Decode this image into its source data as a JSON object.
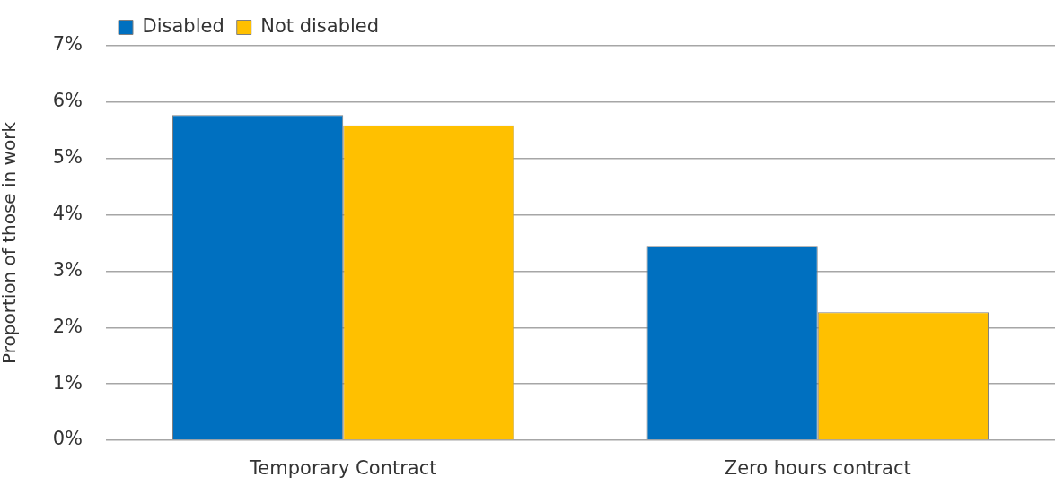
{
  "chart_data": {
    "type": "bar",
    "ylabel": "Proportion of those in work",
    "categories": [
      "Temporary Contract",
      "Zero hours contract"
    ],
    "series": [
      {
        "name": "Disabled",
        "color": "#0070c0",
        "values": [
          5.77,
          3.45
        ]
      },
      {
        "name": "Not disabled",
        "color": "#ffc000",
        "values": [
          5.59,
          2.27
        ]
      }
    ],
    "ylim": [
      0,
      7
    ],
    "yticks": [
      {
        "value": 0,
        "label": "0%"
      },
      {
        "value": 1,
        "label": "1%"
      },
      {
        "value": 2,
        "label": "2%"
      },
      {
        "value": 3,
        "label": "3%"
      },
      {
        "value": 4,
        "label": "4%"
      },
      {
        "value": 5,
        "label": "5%"
      },
      {
        "value": 6,
        "label": "6%"
      },
      {
        "value": 7,
        "label": "7%"
      }
    ],
    "grid": "y",
    "legend": "top left"
  }
}
